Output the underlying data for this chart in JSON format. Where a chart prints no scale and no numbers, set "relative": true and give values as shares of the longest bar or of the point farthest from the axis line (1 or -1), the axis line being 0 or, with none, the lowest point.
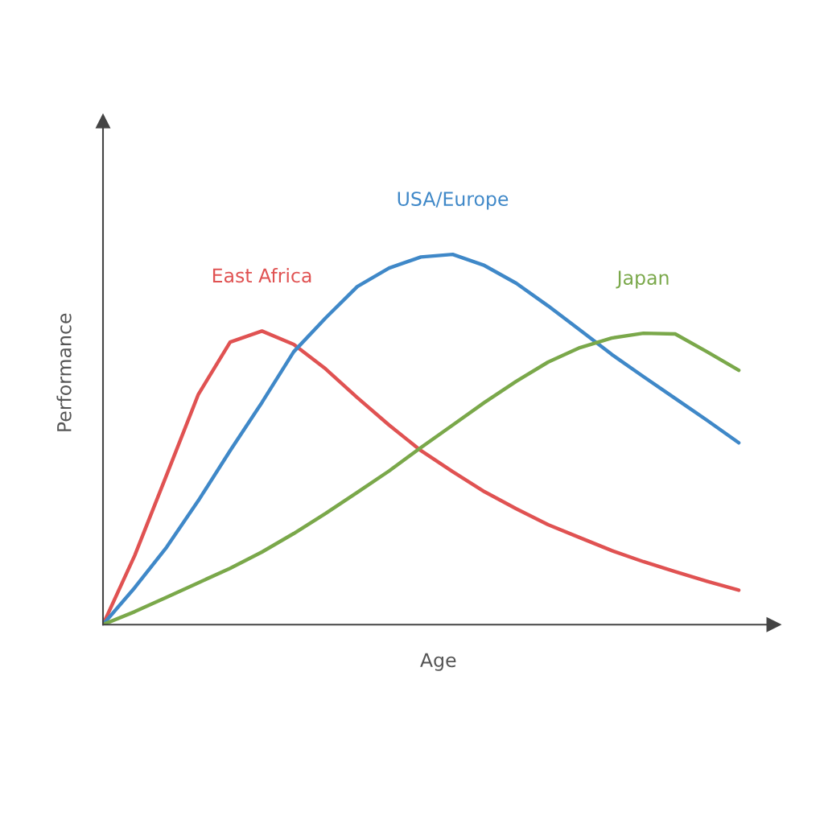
{
  "chart_data": {
    "type": "line",
    "relative": true,
    "xlabel": "Age",
    "ylabel": "Performance",
    "categories": [
      null,
      null,
      null,
      null,
      null,
      null,
      null,
      null,
      null,
      null,
      null,
      null,
      null,
      null,
      null,
      null,
      null,
      null,
      null,
      null,
      null
    ],
    "tick_labels": false,
    "grid": false,
    "legend": false,
    "marker": "none",
    "line_style": "solid",
    "series": [
      {
        "name": "East Africa",
        "color": "#e05252",
        "values": [
          0,
          0.187,
          0.404,
          0.622,
          0.763,
          0.793,
          0.757,
          0.691,
          0.613,
          0.539,
          0.47,
          0.413,
          0.359,
          0.313,
          0.27,
          0.235,
          0.2,
          0.17,
          0.143,
          0.117,
          0.093
        ]
      },
      {
        "name": "USA/Europe",
        "color": "#3f88c8",
        "values": [
          0,
          0.1,
          0.209,
          0.335,
          0.47,
          0.6,
          0.737,
          0.828,
          0.913,
          0.963,
          0.993,
          1.0,
          0.97,
          0.922,
          0.861,
          0.796,
          0.73,
          0.67,
          0.611,
          0.552,
          0.491
        ]
      },
      {
        "name": "Japan",
        "color": "#7aa84a",
        "values": [
          0,
          0.035,
          0.074,
          0.113,
          0.152,
          0.196,
          0.246,
          0.3,
          0.357,
          0.415,
          0.478,
          0.539,
          0.6,
          0.657,
          0.709,
          0.748,
          0.774,
          0.787,
          0.785,
          0.737,
          0.687
        ]
      }
    ]
  }
}
